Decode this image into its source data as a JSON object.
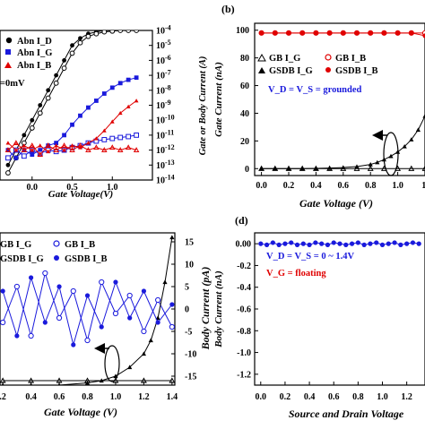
{
  "panels": {
    "a": {
      "legend": [
        "Abn I_D",
        "Abn I_G",
        "Abn I_B"
      ],
      "note": "=0mV",
      "xlabel": "Gate Voltage(V)",
      "ylabel": "Gate or Body Current (A)",
      "xticks": [
        "0.0",
        "0.5",
        "1.0"
      ],
      "yticks": [
        "-4",
        "-5",
        "-6",
        "-7",
        "-8",
        "-9",
        "-10",
        "-11",
        "-12",
        "-13",
        "-14"
      ]
    },
    "b": {
      "tag": "(b)",
      "legend": [
        "GB I_G",
        "GB I_B",
        "GSDB I_G",
        "GSDB I_B"
      ],
      "note": "V_D = V_S = grounded",
      "xlabel": "Gate Voltage (V)",
      "ylabel": "Gate Current (nA)",
      "xticks": [
        "0.0",
        "0.2",
        "0.4",
        "0.6",
        "0.8",
        "1.0",
        "1."
      ],
      "yticks": [
        "100",
        "80",
        "60",
        "40",
        "20",
        "0"
      ]
    },
    "c": {
      "legend": [
        "GB I_G",
        "GB I_B",
        "GSDB I_G",
        "GSDB I_B"
      ],
      "xlabel": "Gate Voltage (V)",
      "ylabel": "Body Current (pA)",
      "xticks": [
        ".2",
        "0.4",
        "0.6",
        "0.8",
        "1.0",
        "1.2",
        "1.4"
      ],
      "yticks": [
        "15",
        "10",
        "5",
        "0",
        "-5",
        "-10",
        "-15"
      ]
    },
    "d": {
      "tag": "(d)",
      "note1": "V_D = V_S = 0 ~ 1.4V",
      "note2": "V_G = floating",
      "xlabel": "Source and Drain Voltage",
      "ylabel": "Body Current (nA)",
      "xticks": [
        "0.0",
        "0.2",
        "0.4",
        "0.6",
        "0.8",
        "1.0",
        "1.2"
      ],
      "yticks": [
        "-1.2",
        "-1.0",
        "-0.8",
        "-0.6",
        "-0.4",
        "-0.2",
        "0.00"
      ]
    }
  },
  "colors": {
    "black": "#000000",
    "blue": "#1a1adc",
    "red": "#e00000"
  },
  "chart_data": [
    {
      "panel": "a",
      "type": "scatter",
      "xlabel": "Gate Voltage(V)",
      "ylabel": "Gate or Body Current (A)",
      "yscale": "log",
      "ylim": [
        1e-14,
        0.0001
      ],
      "xlim": [
        -0.4,
        1.5
      ],
      "series": [
        {
          "name": "Abn I_D",
          "marker": "filled-circle",
          "color": "#000000",
          "x": [
            -0.3,
            -0.2,
            -0.1,
            0.0,
            0.1,
            0.2,
            0.3,
            0.4,
            0.5,
            0.6,
            0.7,
            0.8,
            0.9,
            1.0,
            1.1,
            1.2,
            1.3
          ],
          "y": [
            1e-13,
            1e-12,
            1e-11,
            1e-10,
            1e-09,
            1e-08,
            1e-07,
            1e-06,
            1e-05,
            3e-05,
            6e-05,
            8e-05,
            0.0001,
            0.0001,
            0.0001,
            0.0001,
            0.0001
          ]
        },
        {
          "name": "Abn I_D (open)",
          "marker": "open-circle",
          "color": "#000000",
          "x": [
            -0.3,
            -0.2,
            -0.1,
            0.0,
            0.1,
            0.2,
            0.3,
            0.4,
            0.5,
            0.6,
            0.7,
            0.8,
            0.9,
            1.0,
            1.1,
            1.2,
            1.3
          ],
          "y": [
            3e-14,
            3e-13,
            3e-12,
            3e-11,
            3e-10,
            3e-09,
            3e-08,
            3e-07,
            3e-06,
            1.5e-05,
            4e-05,
            6e-05,
            8e-05,
            9e-05,
            0.0001,
            0.0001,
            0.0001
          ]
        },
        {
          "name": "Abn I_G",
          "marker": "filled-square",
          "color": "#1a1adc",
          "x": [
            -0.3,
            -0.2,
            -0.1,
            0.0,
            0.1,
            0.2,
            0.3,
            0.4,
            0.5,
            0.6,
            0.7,
            0.8,
            0.9,
            1.0,
            1.1,
            1.2,
            1.3
          ],
          "y": [
            1e-12,
            3e-13,
            1e-12,
            5e-13,
            1e-12,
            2e-12,
            3e-12,
            1e-11,
            5e-11,
            2e-10,
            7e-10,
            2e-09,
            6e-09,
            1.5e-08,
            3e-08,
            5e-08,
            7e-08
          ]
        },
        {
          "name": "Abn I_G (open)",
          "marker": "open-square",
          "color": "#1a1adc",
          "x": [
            -0.3,
            -0.2,
            -0.1,
            0.0,
            0.1,
            0.2,
            0.3,
            0.4,
            0.5,
            0.6,
            0.7,
            0.8,
            0.9,
            1.0,
            1.1,
            1.2,
            1.3
          ],
          "y": [
            3e-13,
            1e-12,
            4e-13,
            1e-12,
            6e-13,
            1e-12,
            8e-13,
            1e-12,
            1.5e-12,
            2e-12,
            3e-12,
            4e-12,
            5e-12,
            6e-12,
            7e-12,
            8e-12,
            1e-11
          ]
        },
        {
          "name": "Abn I_B",
          "marker": "filled-triangle",
          "color": "#e00000",
          "x": [
            -0.3,
            -0.2,
            -0.1,
            0.0,
            0.1,
            0.2,
            0.3,
            0.4,
            0.5,
            0.6,
            0.7,
            0.8,
            0.9,
            1.0,
            1.1,
            1.2,
            1.3
          ],
          "y": [
            3e-12,
            1e-12,
            2e-12,
            1e-12,
            2e-12,
            8e-13,
            2e-12,
            1e-12,
            2e-12,
            1.5e-12,
            3e-12,
            6e-12,
            2e-11,
            8e-11,
            3e-10,
            8e-10,
            2e-09
          ]
        },
        {
          "name": "Abn I_B (open)",
          "marker": "open-triangle",
          "color": "#e00000",
          "x": [
            -0.3,
            -0.2,
            -0.1,
            0.0,
            0.1,
            0.2,
            0.3,
            0.4,
            0.5,
            0.6,
            0.7,
            0.8,
            0.9,
            1.0,
            1.1,
            1.2,
            1.3
          ],
          "y": [
            1e-12,
            3e-12,
            1e-12,
            2e-12,
            5e-13,
            2e-12,
            1e-12,
            2e-12,
            1e-12,
            2e-12,
            1e-12,
            1.5e-12,
            1e-12,
            1.5e-12,
            1e-12,
            1.5e-12,
            1e-12
          ]
        }
      ]
    },
    {
      "panel": "b",
      "type": "scatter",
      "xlabel": "Gate Voltage (V)",
      "ylabel": "Gate Current (nA)",
      "xlim": [
        -0.05,
        1.2
      ],
      "ylim": [
        -5,
        105
      ],
      "series": [
        {
          "name": "GB I_G",
          "marker": "open-triangle",
          "color": "#000000",
          "x": [
            0.0,
            0.1,
            0.2,
            0.3,
            0.4,
            0.5,
            0.6,
            0.7,
            0.8,
            0.9,
            1.0,
            1.1,
            1.2
          ],
          "y": [
            0,
            0,
            0,
            0,
            0,
            0,
            0,
            0,
            0,
            0,
            0,
            0,
            0
          ]
        },
        {
          "name": "GB I_B",
          "marker": "open-circle",
          "color": "#e00000",
          "x": [
            0.0,
            0.1,
            0.2,
            0.3,
            0.4,
            0.5,
            0.6,
            0.7,
            0.8,
            0.9,
            1.0,
            1.1,
            1.2
          ],
          "y": [
            98,
            98,
            98,
            98,
            98,
            98,
            98,
            98,
            98,
            98,
            98,
            98,
            98
          ]
        },
        {
          "name": "GSDB I_G",
          "marker": "filled-triangle",
          "color": "#000000",
          "x": [
            0.0,
            0.1,
            0.2,
            0.3,
            0.4,
            0.5,
            0.6,
            0.7,
            0.8,
            0.85,
            0.9,
            0.95,
            1.0,
            1.05,
            1.1,
            1.15,
            1.2
          ],
          "y": [
            0,
            0,
            0,
            0,
            0.2,
            0.4,
            0.8,
            1.5,
            3,
            4.5,
            6.5,
            9,
            12,
            16,
            21,
            28,
            38
          ]
        },
        {
          "name": "GSDB I_B",
          "marker": "filled-circle",
          "color": "#e00000",
          "x": [
            0.0,
            0.1,
            0.2,
            0.3,
            0.4,
            0.5,
            0.6,
            0.7,
            0.8,
            0.9,
            1.0,
            1.1,
            1.2
          ],
          "y": [
            98,
            98,
            98,
            98,
            98,
            98,
            98,
            98,
            98,
            98,
            98,
            98,
            96
          ]
        }
      ]
    },
    {
      "panel": "c",
      "type": "scatter",
      "xlabel": "Gate Voltage (V)",
      "ylabel": "Body Current (pA)",
      "xlim": [
        0.18,
        1.42
      ],
      "ylim": [
        -17,
        17
      ],
      "series": [
        {
          "name": "GB I_G",
          "marker": "open-triangle",
          "color": "#000000",
          "x": [
            0.2,
            0.4,
            0.6,
            0.8,
            1.0,
            1.2,
            1.4
          ],
          "y": [
            -16,
            -16,
            -16,
            -16,
            -16,
            -16,
            -16
          ]
        },
        {
          "name": "GB I_B",
          "marker": "open-circle",
          "color": "#1a1adc",
          "x": [
            0.2,
            0.3,
            0.4,
            0.5,
            0.6,
            0.7,
            0.8,
            0.9,
            1.0,
            1.1,
            1.2,
            1.3,
            1.4
          ],
          "y": [
            -3,
            5,
            -6,
            8,
            -2,
            4,
            -7,
            6,
            -1,
            3,
            -5,
            2,
            -4
          ]
        },
        {
          "name": "GSDB I_G",
          "marker": "filled-triangle",
          "color": "#000000",
          "x": [
            0.2,
            0.4,
            0.6,
            0.8,
            0.9,
            1.0,
            1.1,
            1.2,
            1.25,
            1.3,
            1.35,
            1.4
          ],
          "y": [
            -17,
            -17,
            -17,
            -16.5,
            -16,
            -15,
            -13,
            -10,
            -7,
            -2,
            6,
            16
          ]
        },
        {
          "name": "GSDB I_B",
          "marker": "filled-circle",
          "color": "#1a1adc",
          "x": [
            0.2,
            0.3,
            0.4,
            0.5,
            0.6,
            0.7,
            0.8,
            0.9,
            1.0,
            1.1,
            1.2,
            1.3,
            1.4
          ],
          "y": [
            4,
            -6,
            7,
            -3,
            5,
            -8,
            3,
            -4,
            6,
            -2,
            4,
            -3,
            1
          ]
        }
      ]
    },
    {
      "panel": "d",
      "type": "line",
      "xlabel": "Source and Drain Voltage",
      "ylabel": "Body Current (nA)",
      "xlim": [
        -0.05,
        1.35
      ],
      "ylim": [
        -1.3,
        0.1
      ],
      "series": [
        {
          "name": "Body Current",
          "marker": "filled-circle",
          "color": "#1a1adc",
          "x": [
            0.0,
            0.05,
            0.1,
            0.15,
            0.2,
            0.25,
            0.3,
            0.35,
            0.4,
            0.45,
            0.5,
            0.55,
            0.6,
            0.65,
            0.7,
            0.75,
            0.8,
            0.85,
            0.9,
            0.95,
            1.0,
            1.05,
            1.1,
            1.15,
            1.2,
            1.25,
            1.3
          ],
          "y": [
            0.0,
            -0.01,
            0.01,
            -0.01,
            0.0,
            0.01,
            -0.01,
            0.0,
            -0.01,
            0.01,
            0.0,
            -0.01,
            0.01,
            0.0,
            -0.01,
            0.0,
            0.01,
            -0.01,
            0.0,
            0.01,
            -0.01,
            0.0,
            0.01,
            -0.01,
            0.0,
            0.01,
            0.0
          ]
        }
      ]
    }
  ]
}
